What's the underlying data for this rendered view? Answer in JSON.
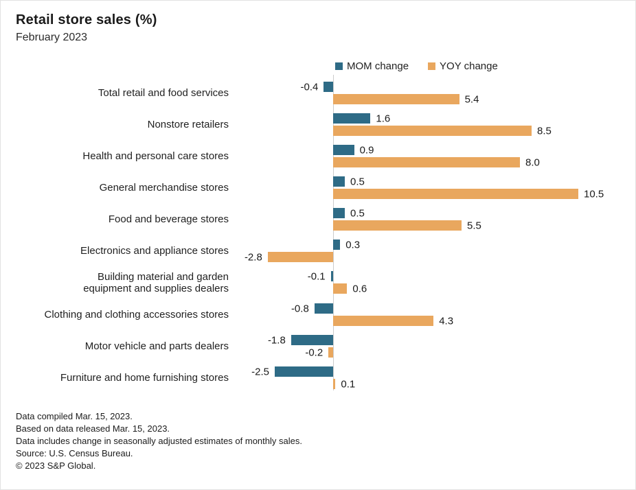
{
  "title": "Retail store sales (%)",
  "subtitle": "February 2023",
  "legend": {
    "mom": "MOM change",
    "yoy": "YOY change"
  },
  "colors": {
    "mom": "#2e6b86",
    "yoy": "#e9a75e",
    "axis": "#cccccc"
  },
  "chart_data": {
    "type": "bar",
    "orientation": "horizontal",
    "title": "Retail store sales (%)",
    "subtitle": "February 2023",
    "categories": [
      "Total retail and food services",
      "Nonstore retailers",
      "Health and personal care stores",
      "General merchandise stores",
      "Food and beverage stores",
      "Electronics and appliance stores",
      "Building material and garden\nequipment and supplies dealers",
      "Clothing and clothing accessories stores",
      "Motor vehicle and parts dealers",
      "Furniture and home furnishing stores"
    ],
    "series": [
      {
        "name": "MOM change",
        "values": [
          -0.4,
          1.6,
          0.9,
          0.5,
          0.5,
          0.3,
          -0.1,
          -0.8,
          -1.8,
          -2.5
        ]
      },
      {
        "name": "YOY change",
        "values": [
          5.4,
          8.5,
          8.0,
          10.5,
          5.5,
          -2.8,
          0.6,
          4.3,
          -0.2,
          0.1
        ]
      }
    ],
    "value_labels": "one_decimal",
    "xlim": [
      -3.5,
      11.5
    ],
    "grid": false,
    "legend_position": "top"
  },
  "footer": {
    "lines": [
      "Data compiled Mar. 15, 2023.",
      "Based on data released Mar. 15, 2023.",
      "Data includes change in seasonally adjusted estimates of monthly sales.",
      "Source: U.S. Census Bureau.",
      "© 2023 S&P Global."
    ]
  }
}
